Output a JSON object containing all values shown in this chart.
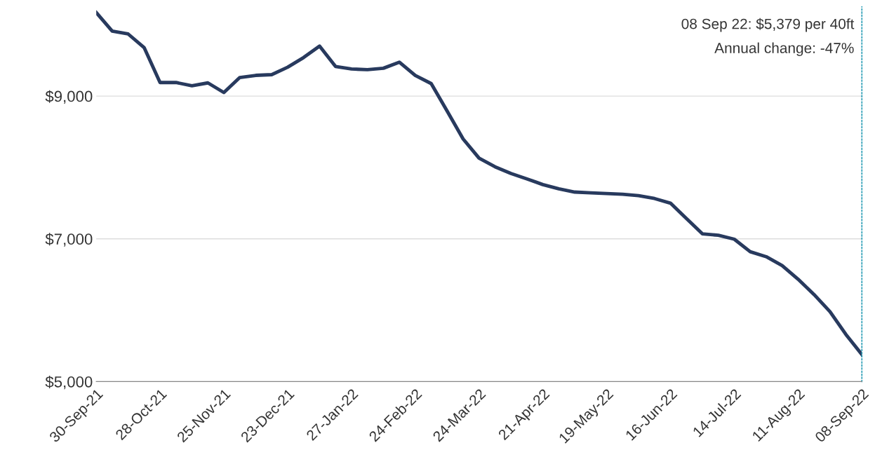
{
  "chart_data": {
    "type": "line",
    "categories": [
      "30-Sep-21",
      null,
      null,
      null,
      "28-Oct-21",
      null,
      null,
      null,
      "25-Nov-21",
      null,
      null,
      null,
      "23-Dec-21",
      null,
      null,
      null,
      "27-Jan-22",
      null,
      null,
      null,
      "24-Feb-22",
      null,
      null,
      null,
      "24-Mar-22",
      null,
      null,
      null,
      "21-Apr-22",
      null,
      null,
      null,
      "19-May-22",
      null,
      null,
      null,
      "16-Jun-22",
      null,
      null,
      null,
      "14-Jul-22",
      null,
      null,
      null,
      "11-Aug-22",
      null,
      null,
      null,
      "08-Sep-22"
    ],
    "series": [
      {
        "color": "#283a5e",
        "values": [
          10170,
          9910,
          9870,
          9680,
          9190,
          9190,
          9145,
          9185,
          9050,
          9260,
          9290,
          9300,
          9405,
          9540,
          9700,
          9415,
          9380,
          9370,
          9390,
          9475,
          9290,
          9175,
          8790,
          8400,
          8130,
          8010,
          7915,
          7840,
          7760,
          7700,
          7655,
          7645,
          7635,
          7625,
          7605,
          7565,
          7500,
          7285,
          7070,
          7050,
          6995,
          6820,
          6750,
          6625,
          6435,
          6220,
          5980,
          5660,
          5379
        ]
      }
    ],
    "ylim": [
      5000,
      10250
    ],
    "yticks": [
      {
        "value": 5000,
        "label": "$5,000"
      },
      {
        "value": 7000,
        "label": "$7,000"
      },
      {
        "value": 9000,
        "label": "$9,000"
      }
    ],
    "grid": "y",
    "legend": false,
    "marker": "none",
    "line_style": "solid",
    "annotations": [
      "08 Sep 22: $5,379 per 40ft",
      "Annual change: -47%"
    ]
  }
}
